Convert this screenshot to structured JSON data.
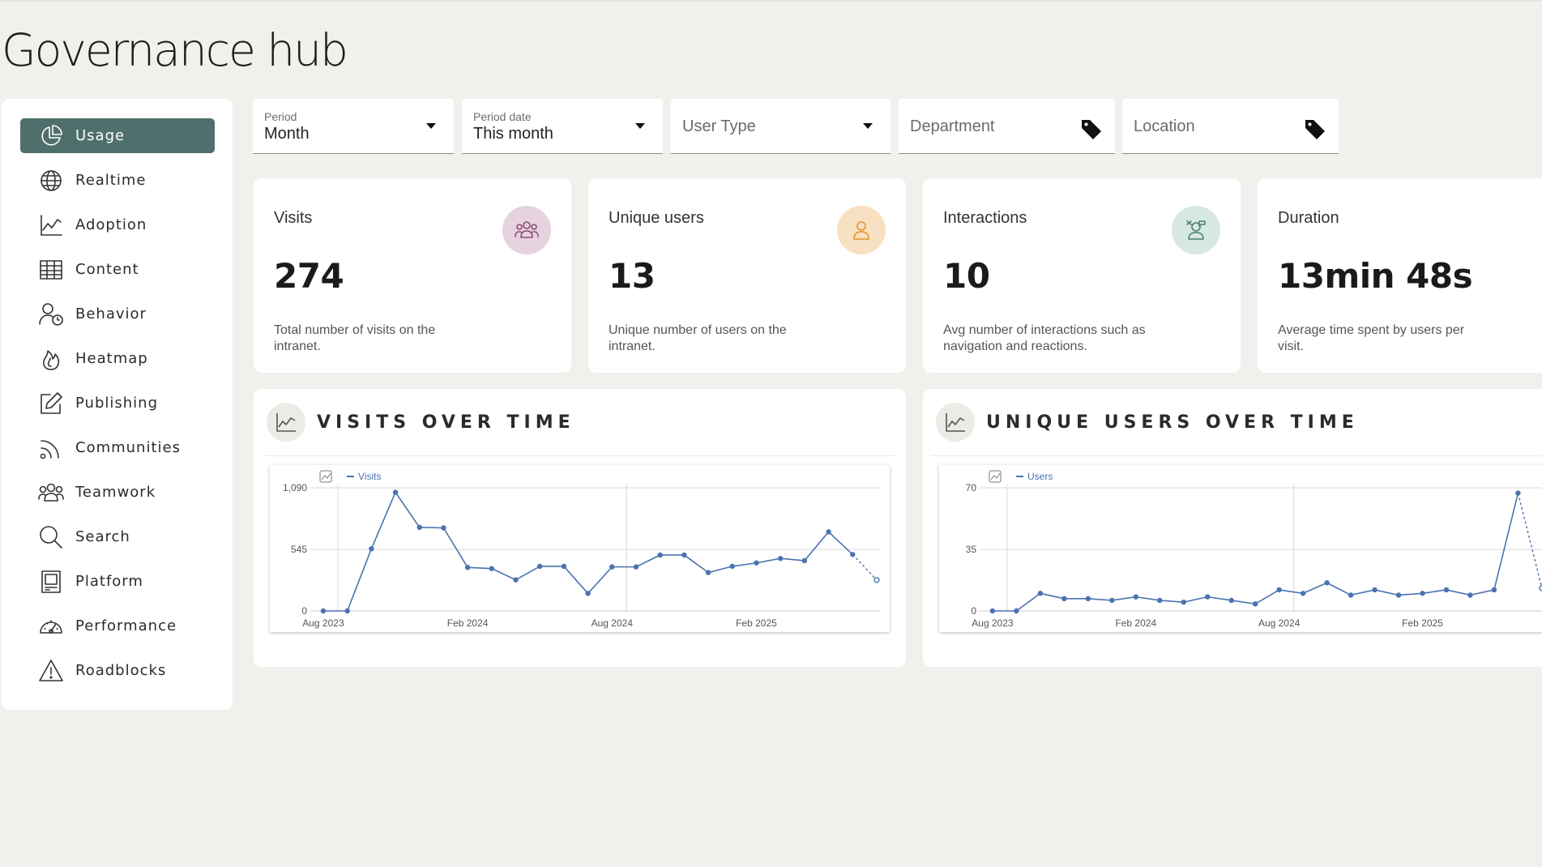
{
  "page": {
    "title": "Governance hub"
  },
  "sidebar": {
    "items": [
      {
        "label": "Usage",
        "icon": "pie-chart-icon",
        "active": true
      },
      {
        "label": "Realtime",
        "icon": "globe-icon"
      },
      {
        "label": "Adoption",
        "icon": "line-chart-icon"
      },
      {
        "label": "Content",
        "icon": "table-icon"
      },
      {
        "label": "Behavior",
        "icon": "user-clock-icon"
      },
      {
        "label": "Heatmap",
        "icon": "flame-icon"
      },
      {
        "label": "Publishing",
        "icon": "edit-icon"
      },
      {
        "label": "Communities",
        "icon": "rss-icon"
      },
      {
        "label": "Teamwork",
        "icon": "team-icon"
      },
      {
        "label": "Search",
        "icon": "search-icon"
      },
      {
        "label": "Platform",
        "icon": "platform-icon"
      },
      {
        "label": "Performance",
        "icon": "gauge-icon"
      },
      {
        "label": "Roadblocks",
        "icon": "warning-icon"
      }
    ]
  },
  "filters": {
    "period": {
      "label": "Period",
      "value": "Month"
    },
    "period_date": {
      "label": "Period date",
      "value": "This month"
    },
    "user_type": {
      "placeholder": "User Type"
    },
    "department": {
      "placeholder": "Department"
    },
    "location": {
      "placeholder": "Location"
    }
  },
  "kpis": [
    {
      "title": "Visits",
      "value": "274",
      "desc": "Total number of visits on the intranet.",
      "icon": "group-icon",
      "icon_bg": "#e6d3df",
      "icon_color": "#8e4a78"
    },
    {
      "title": "Unique users",
      "value": "13",
      "desc": "Unique number of users on the intranet.",
      "icon": "user-icon",
      "icon_bg": "#f8e0c2",
      "icon_color": "#e0952a"
    },
    {
      "title": "Interactions",
      "value": "10",
      "desc": "Avg number of interactions such as navigation and reactions.",
      "icon": "interaction-icon",
      "icon_bg": "#d6e8e1",
      "icon_color": "#4e7f6f"
    },
    {
      "title": "Duration",
      "value": "13min 48s",
      "desc": "Average time spent by users per visit."
    }
  ],
  "panels": {
    "visits": {
      "title": "VISITS OVER TIME"
    },
    "users": {
      "title": "UNIQUE USERS OVER TIME"
    }
  },
  "chart_data": [
    {
      "type": "line",
      "title": "VISITS OVER TIME",
      "series": [
        {
          "name": "Visits",
          "color": "#4a72b0"
        }
      ],
      "x_ticks": [
        "Aug 2023",
        "Feb 2024",
        "Aug 2024",
        "Feb 2025"
      ],
      "y_ticks": [
        "0",
        "545",
        "1,090"
      ],
      "ylim": [
        0,
        1090
      ],
      "x": [
        "2023-08",
        "2023-09",
        "2023-10",
        "2023-11",
        "2023-12",
        "2024-01",
        "2024-02",
        "2024-03",
        "2024-04",
        "2024-05",
        "2024-06",
        "2024-07",
        "2024-08",
        "2024-09",
        "2024-10",
        "2024-11",
        "2024-12",
        "2025-01",
        "2025-02",
        "2025-03",
        "2025-04",
        "2025-05",
        "2025-06",
        "2025-07"
      ],
      "values": [
        0,
        0,
        550,
        1050,
        740,
        735,
        385,
        375,
        275,
        395,
        395,
        155,
        390,
        390,
        495,
        495,
        340,
        395,
        425,
        465,
        445,
        700,
        500,
        274
      ],
      "partial_last_point": true,
      "grid": true,
      "legend": "top-left"
    },
    {
      "type": "line",
      "title": "UNIQUE USERS OVER TIME",
      "series": [
        {
          "name": "Users",
          "color": "#4a72b0"
        }
      ],
      "x_ticks": [
        "Aug 2023",
        "Feb 2024",
        "Aug 2024",
        "Feb 2025"
      ],
      "y_ticks": [
        "0",
        "35",
        "70"
      ],
      "ylim": [
        0,
        70
      ],
      "x": [
        "2023-08",
        "2023-09",
        "2023-10",
        "2023-11",
        "2023-12",
        "2024-01",
        "2024-02",
        "2024-03",
        "2024-04",
        "2024-05",
        "2024-06",
        "2024-07",
        "2024-08",
        "2024-09",
        "2024-10",
        "2024-11",
        "2024-12",
        "2025-01",
        "2025-02",
        "2025-03",
        "2025-04",
        "2025-05",
        "2025-06",
        "2025-07"
      ],
      "values": [
        0,
        0,
        10,
        7,
        7,
        6,
        8,
        6,
        5,
        8,
        6,
        4,
        12,
        10,
        16,
        9,
        12,
        9,
        10,
        12,
        9,
        12,
        67,
        13
      ],
      "partial_last_point": true,
      "grid": true,
      "legend": "top-left"
    }
  ]
}
